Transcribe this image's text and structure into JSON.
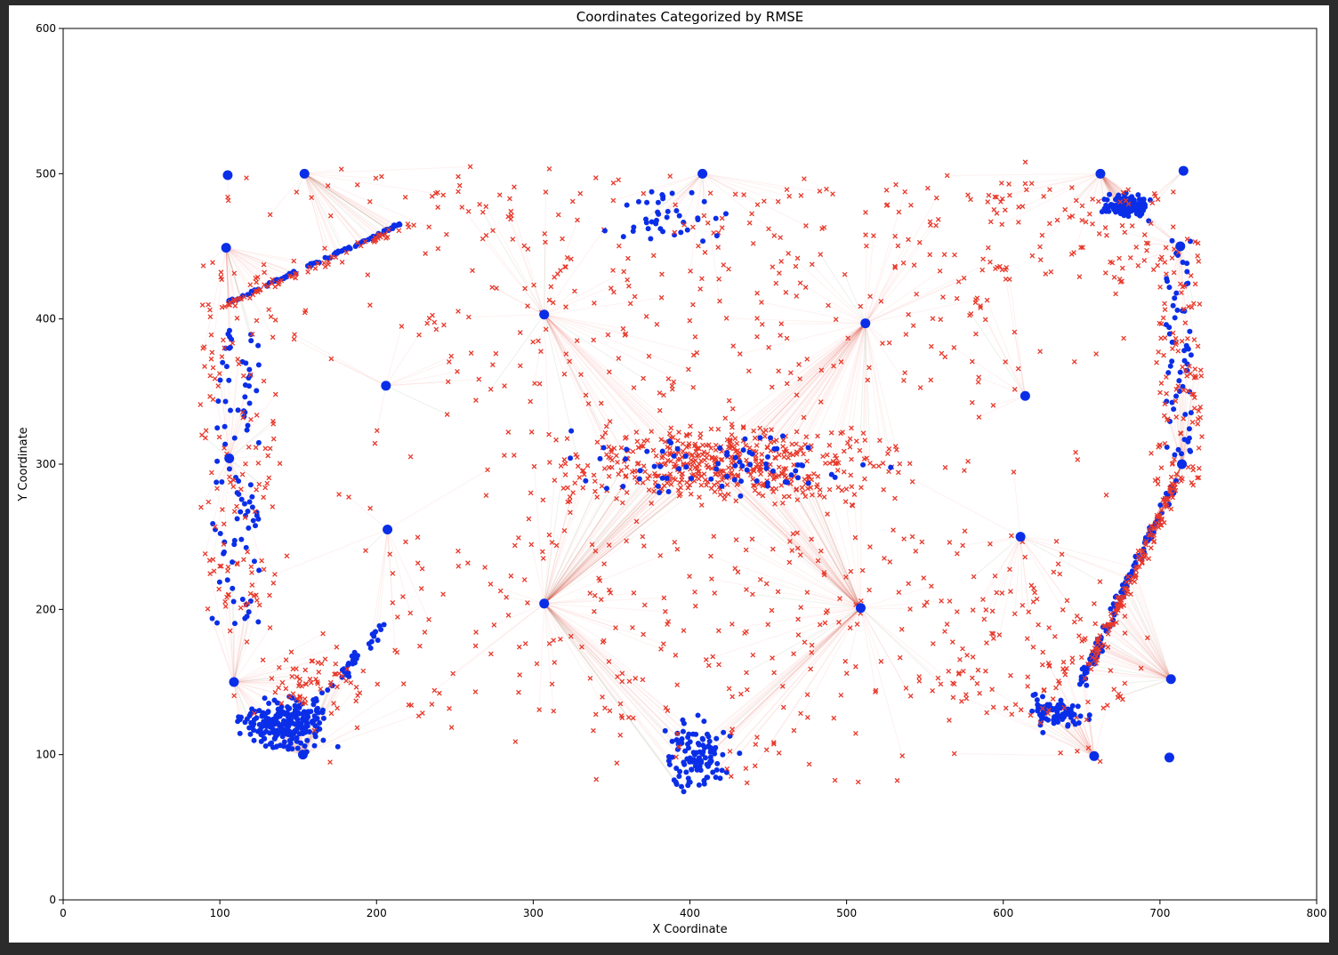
{
  "chart_data": {
    "type": "scatter",
    "title": "Coordinates Categorized by RMSE",
    "xlabel": "X Coordinate",
    "ylabel": "Y Coordinate",
    "xlim": [
      0,
      800
    ],
    "ylim": [
      0,
      600
    ],
    "xticks": [
      0,
      100,
      200,
      300,
      400,
      500,
      600,
      700,
      800
    ],
    "yticks": [
      0,
      100,
      200,
      300,
      400,
      500,
      600
    ],
    "grid": false,
    "colors": {
      "blue": "#0a2ee8",
      "red": "#e8382a",
      "link_red": "#e8382a",
      "link_green": "#5c8f5c"
    },
    "anchors": [
      [
        105,
        499
      ],
      [
        154,
        500
      ],
      [
        104,
        449
      ],
      [
        106,
        304
      ],
      [
        109,
        150
      ],
      [
        153,
        100
      ],
      [
        307,
        403
      ],
      [
        206,
        354
      ],
      [
        207,
        255
      ],
      [
        307,
        204
      ],
      [
        408,
        500
      ],
      [
        512,
        397
      ],
      [
        509,
        201
      ],
      [
        614,
        347
      ],
      [
        611,
        250
      ],
      [
        662,
        500
      ],
      [
        715,
        502
      ],
      [
        713,
        450
      ],
      [
        714,
        300
      ],
      [
        707,
        152
      ],
      [
        658,
        99
      ],
      [
        706,
        98
      ]
    ],
    "clusters": [
      {
        "name": "top-left diagonal blue",
        "shape": "line",
        "from": [
          107,
          412
        ],
        "to": [
          215,
          465
        ],
        "n": 90,
        "spread": 2,
        "color": "blue"
      },
      {
        "name": "top-left diagonal red",
        "shape": "line",
        "from": [
          100,
          408
        ],
        "to": [
          225,
          466
        ],
        "n": 60,
        "spread": 4,
        "color": "red"
      },
      {
        "name": "left column blue",
        "shape": "box",
        "center": [
          110,
          300
        ],
        "size": [
          30,
          220
        ],
        "n": 90,
        "color": "blue"
      },
      {
        "name": "left column red",
        "shape": "box",
        "center": [
          112,
          320
        ],
        "size": [
          50,
          240
        ],
        "n": 130,
        "color": "red"
      },
      {
        "name": "bottom-left blob blue",
        "shape": "blob",
        "center": [
          140,
          120
        ],
        "radius": [
          45,
          28
        ],
        "n": 220,
        "color": "blue"
      },
      {
        "name": "bottom-left diagonal blue",
        "shape": "line",
        "from": [
          150,
          120
        ],
        "to": [
          205,
          190
        ],
        "n": 50,
        "spread": 6,
        "color": "blue"
      },
      {
        "name": "bottom-left red",
        "shape": "blob",
        "center": [
          165,
          150
        ],
        "radius": [
          55,
          40
        ],
        "n": 60,
        "color": "red"
      },
      {
        "name": "center band red",
        "shape": "blob",
        "center": [
          420,
          300
        ],
        "radius": [
          190,
          45
        ],
        "n": 520,
        "color": "red"
      },
      {
        "name": "center band blue",
        "shape": "blob",
        "center": [
          420,
          300
        ],
        "radius": [
          170,
          40
        ],
        "n": 75,
        "color": "blue"
      },
      {
        "name": "upper middle red",
        "shape": "box",
        "center": [
          420,
          420
        ],
        "size": [
          380,
          160
        ],
        "n": 260,
        "color": "red"
      },
      {
        "name": "upper middle blue",
        "shape": "blob",
        "center": [
          390,
          470
        ],
        "radius": [
          70,
          35
        ],
        "n": 40,
        "color": "blue"
      },
      {
        "name": "lower middle red",
        "shape": "box",
        "center": [
          430,
          190
        ],
        "size": [
          440,
          130
        ],
        "n": 240,
        "color": "red"
      },
      {
        "name": "bottom blob blue",
        "shape": "blob",
        "center": [
          405,
          100
        ],
        "radius": [
          35,
          40
        ],
        "n": 110,
        "color": "blue"
      },
      {
        "name": "bottom blob red",
        "shape": "box",
        "center": [
          440,
          100
        ],
        "size": [
          200,
          40
        ],
        "n": 20,
        "color": "red"
      },
      {
        "name": "top-right cluster blue",
        "shape": "blob",
        "center": [
          678,
          478
        ],
        "radius": [
          22,
          12
        ],
        "n": 160,
        "color": "blue"
      },
      {
        "name": "top-right red",
        "shape": "box",
        "center": [
          650,
          460
        ],
        "size": [
          120,
          70
        ],
        "n": 80,
        "color": "red"
      },
      {
        "name": "right edge blue",
        "shape": "box",
        "center": [
          712,
          380
        ],
        "size": [
          16,
          150
        ],
        "n": 60,
        "color": "blue"
      },
      {
        "name": "right edge red",
        "shape": "box",
        "center": [
          712,
          370
        ],
        "size": [
          30,
          170
        ],
        "n": 110,
        "color": "red"
      },
      {
        "name": "right arc blue",
        "shape": "line",
        "from": [
          710,
          290
        ],
        "to": [
          650,
          150
        ],
        "n": 120,
        "spread": 5,
        "color": "blue"
      },
      {
        "name": "right arc red",
        "shape": "line",
        "from": [
          712,
          290
        ],
        "to": [
          655,
          160
        ],
        "n": 140,
        "spread": 6,
        "color": "red"
      },
      {
        "name": "bottom-right blue",
        "shape": "blob",
        "center": [
          635,
          130
        ],
        "radius": [
          30,
          20
        ],
        "n": 70,
        "color": "blue"
      },
      {
        "name": "bottom-right red",
        "shape": "box",
        "center": [
          620,
          170
        ],
        "size": [
          120,
          100
        ],
        "n": 80,
        "color": "red"
      },
      {
        "name": "scattered red",
        "shape": "box",
        "center": [
          400,
          300
        ],
        "size": [
          600,
          420
        ],
        "n": 200,
        "color": "red"
      }
    ]
  }
}
